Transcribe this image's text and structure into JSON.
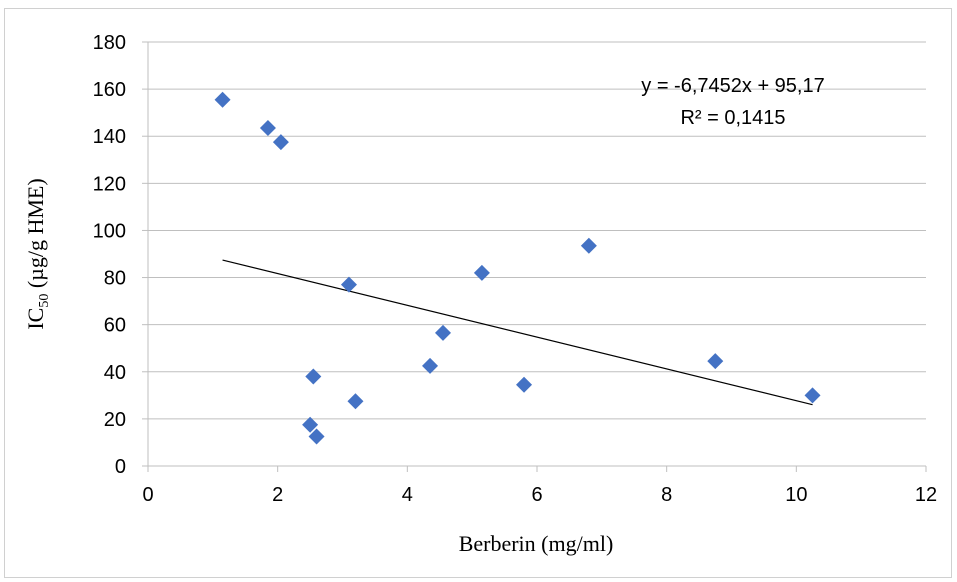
{
  "chart_data": {
    "type": "scatter",
    "xlabel": "Berberin (mg/ml)",
    "ylabel_main": "IC",
    "ylabel_sub": "50",
    "ylabel_rest": " (µg/g HME)",
    "xlim": [
      0,
      12
    ],
    "ylim": [
      0,
      180
    ],
    "x_ticks": [
      0,
      2,
      4,
      6,
      8,
      10,
      12
    ],
    "y_ticks": [
      0,
      20,
      40,
      60,
      80,
      100,
      120,
      140,
      160,
      180
    ],
    "grid": "horizontal",
    "marker": "diamond",
    "marker_color": "#4472C4",
    "trendline_color": "#000000",
    "points": [
      {
        "x": 1.15,
        "y": 155.5
      },
      {
        "x": 1.85,
        "y": 143.5
      },
      {
        "x": 2.05,
        "y": 137.5
      },
      {
        "x": 2.5,
        "y": 17.5
      },
      {
        "x": 2.55,
        "y": 38
      },
      {
        "x": 2.6,
        "y": 12.5
      },
      {
        "x": 3.1,
        "y": 77
      },
      {
        "x": 3.2,
        "y": 27.5
      },
      {
        "x": 4.35,
        "y": 42.5
      },
      {
        "x": 4.55,
        "y": 56.5
      },
      {
        "x": 5.15,
        "y": 82
      },
      {
        "x": 5.8,
        "y": 34.5
      },
      {
        "x": 6.8,
        "y": 93.5
      },
      {
        "x": 8.75,
        "y": 44.5
      },
      {
        "x": 10.25,
        "y": 30
      }
    ],
    "trendline": {
      "slope": -6.7452,
      "intercept": 95.17,
      "x_start": 1.15,
      "x_end": 10.25
    },
    "equation_label": "y = -6,7452x + 95,17",
    "r2_label": "R² = 0,1415"
  }
}
